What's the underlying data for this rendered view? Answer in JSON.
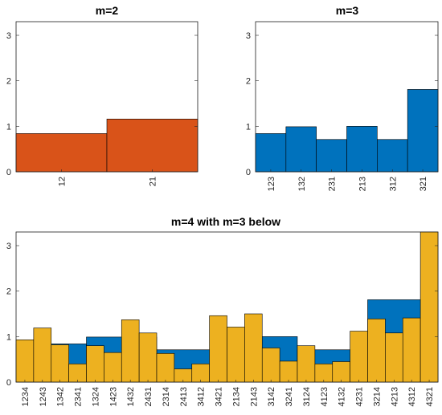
{
  "colors": {
    "orange": "#D95319",
    "blue": "#0072BD",
    "yellow": "#EDB120",
    "axis": "#262626",
    "edge": "#000000"
  },
  "chart_data": [
    {
      "type": "bar",
      "title": "m=2",
      "categories": [
        "12",
        "21"
      ],
      "values": [
        0.84,
        1.16
      ],
      "ylim": [
        0,
        3.3
      ],
      "yticks": [
        "0",
        "1",
        "2",
        "3"
      ],
      "xlabel": "",
      "ylabel": "",
      "grid": false,
      "color": "orange"
    },
    {
      "type": "bar",
      "title": "m=3",
      "categories": [
        "123",
        "132",
        "231",
        "213",
        "312",
        "321"
      ],
      "values": [
        0.84,
        0.99,
        0.71,
        1.0,
        0.71,
        1.81
      ],
      "ylim": [
        0,
        3.3
      ],
      "yticks": [
        "0",
        "1",
        "2",
        "3"
      ],
      "xlabel": "",
      "ylabel": "",
      "grid": false,
      "color": "blue"
    },
    {
      "type": "bar",
      "title": "m=4 with m=3 below",
      "categories": [
        "1234",
        "1243",
        "1342",
        "2341",
        "1324",
        "1423",
        "1432",
        "2431",
        "2314",
        "2413",
        "3412",
        "3421",
        "2134",
        "2143",
        "3142",
        "3241",
        "3124",
        "4123",
        "4132",
        "4231",
        "3214",
        "4213",
        "4312",
        "4321"
      ],
      "background_series": {
        "values": [
          0.84,
          0.99,
          0.71,
          1.0,
          0.71,
          1.81
        ],
        "color": "blue"
      },
      "series": [
        {
          "values": [
            0.93,
            1.19,
            0.82,
            0.4,
            0.8,
            0.65,
            1.37,
            1.08,
            0.63,
            0.29,
            0.4,
            1.46,
            1.21,
            1.5,
            0.75,
            0.46,
            0.8,
            0.4,
            0.45,
            1.12,
            1.39,
            1.08,
            1.41,
            3.3
          ],
          "color": "yellow"
        }
      ],
      "ylim": [
        0,
        3.3
      ],
      "yticks": [
        "0",
        "1",
        "2",
        "3"
      ],
      "xlabel": "",
      "ylabel": "",
      "grid": false
    }
  ]
}
